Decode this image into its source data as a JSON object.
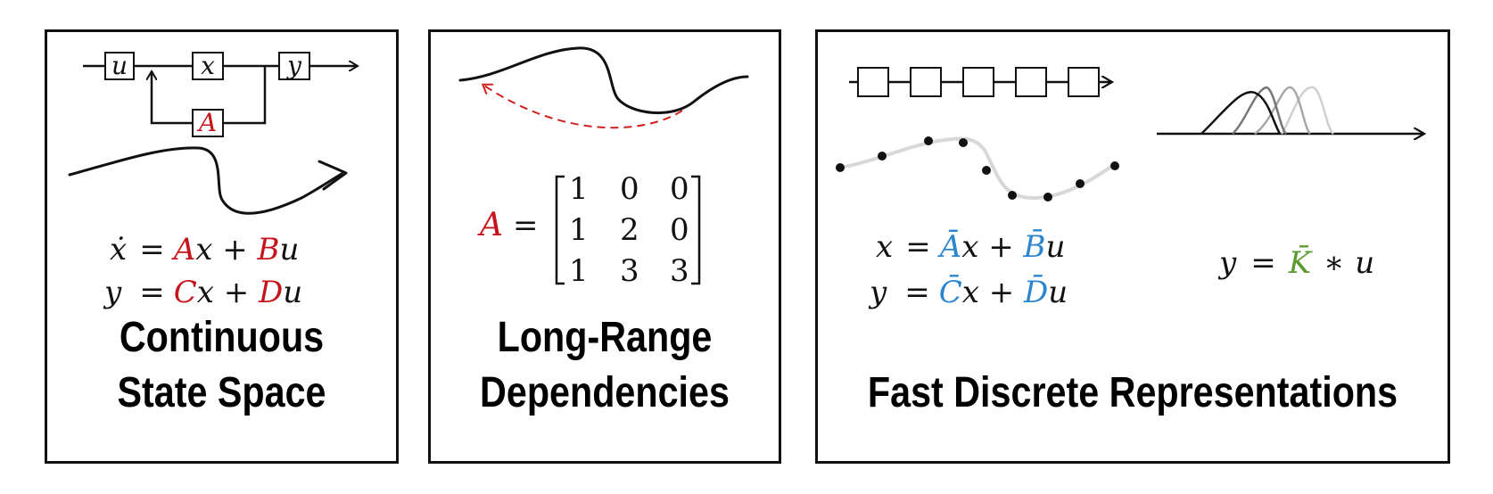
{
  "panels": [
    {
      "title_line1": "Continuous",
      "title_line2": "State Space",
      "diagram_labels": {
        "input": "u",
        "state": "x",
        "output": "y",
        "feedback": "A"
      },
      "equations": {
        "eq1": {
          "lhs": "ẋ",
          "eq": "=",
          "t1": "A",
          "t2": "x + ",
          "t3": "B",
          "t4": "u"
        },
        "eq2": {
          "lhs": "y",
          "eq": "=",
          "t1": "C",
          "t2": "x + ",
          "t3": "D",
          "t4": "u"
        }
      }
    },
    {
      "title_line1": "Long-Range",
      "title_line2": "Dependencies",
      "matrix_name": "A",
      "matrix_eq": "=",
      "matrix": [
        [
          "1",
          "0",
          "0"
        ],
        [
          "1",
          "2",
          "0"
        ],
        [
          "1",
          "3",
          "3"
        ]
      ]
    },
    {
      "title": "Fast Discrete Representations",
      "equations": {
        "eq1": {
          "lhs": "x",
          "eq": "=",
          "t1": "Ā",
          "t2": "x + ",
          "t3": "B̄",
          "t4": "u"
        },
        "eq2": {
          "lhs": "y",
          "eq": "=",
          "t1": "C̄",
          "t2": "x + ",
          "t3": "D̄",
          "t4": "u"
        },
        "conv": {
          "lhs": "y",
          "eq": "=",
          "kernel": "K̄",
          "op": "∗",
          "input": "u"
        }
      }
    }
  ],
  "colors": {
    "accent_red": "#c5141b",
    "accent_blue": "#2b86cf",
    "accent_green": "#5a9a2e"
  }
}
